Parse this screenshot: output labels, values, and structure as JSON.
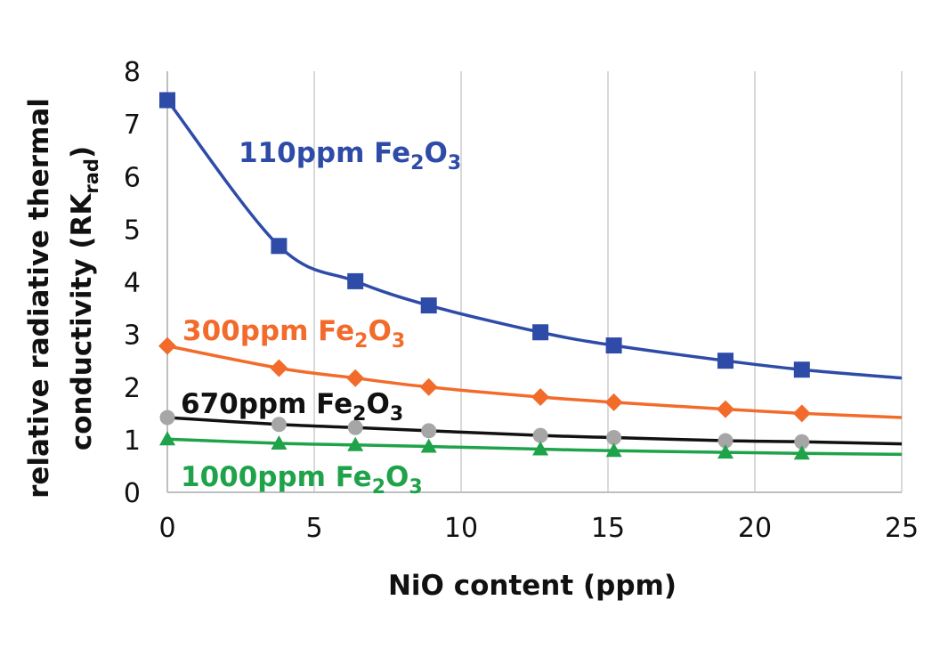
{
  "chart_data": {
    "type": "line",
    "title": "",
    "xlabel": "NiO content (ppm)",
    "ylabel": "relative radiative thermal conductivity (RK",
    "ylabel_sub": "rad",
    "ylabel_end": ")",
    "xlim": [
      0,
      25
    ],
    "ylim": [
      0,
      8
    ],
    "xticks": [
      0,
      5,
      10,
      15,
      20,
      25
    ],
    "yticks": [
      0,
      1,
      2,
      3,
      4,
      5,
      6,
      7,
      8
    ],
    "grid": "vertical",
    "series": [
      {
        "name": "110ppm Fe2O3",
        "label_prefix": "110ppm Fe",
        "label_sub1": "2",
        "label_mid": "O",
        "label_sub2": "3",
        "color": "#2E4BA8",
        "marker": "square",
        "x": [
          0,
          3.8,
          6.4,
          8.9,
          12.7,
          15.2,
          19.0,
          21.6
        ],
        "y": [
          7.45,
          4.68,
          4.01,
          3.55,
          3.04,
          2.79,
          2.5,
          2.33
        ],
        "curve_end": [
          25,
          2.17
        ]
      },
      {
        "name": "300ppm Fe2O3",
        "label_prefix": "300ppm Fe",
        "label_sub1": "2",
        "label_mid": "O",
        "label_sub2": "3",
        "color": "#F26B2B",
        "marker": "diamond",
        "x": [
          0,
          3.8,
          6.4,
          8.9,
          12.7,
          15.2,
          19.0,
          21.6
        ],
        "y": [
          2.78,
          2.36,
          2.17,
          2.0,
          1.81,
          1.71,
          1.58,
          1.5
        ],
        "curve_end": [
          25,
          1.42
        ]
      },
      {
        "name": "670ppm Fe2O3",
        "label_prefix": "670ppm Fe",
        "label_sub1": "2",
        "label_mid": "O",
        "label_sub2": "3",
        "color": "#111111",
        "marker": "circle",
        "marker_color": "#A6A6A6",
        "x": [
          0,
          3.8,
          6.4,
          8.9,
          12.7,
          15.2,
          19.0,
          21.6
        ],
        "y": [
          1.42,
          1.29,
          1.23,
          1.17,
          1.08,
          1.04,
          0.98,
          0.96
        ],
        "curve_end": [
          25,
          0.92
        ]
      },
      {
        "name": "1000ppm Fe2O3",
        "label_prefix": "1000ppm Fe",
        "label_sub1": "2",
        "label_mid": "O",
        "label_sub2": "3",
        "color": "#1FA34A",
        "marker": "triangle",
        "x": [
          0,
          3.8,
          6.4,
          8.9,
          12.7,
          15.2,
          19.0,
          21.6
        ],
        "y": [
          1.01,
          0.93,
          0.9,
          0.87,
          0.82,
          0.79,
          0.76,
          0.74
        ],
        "curve_end": [
          25,
          0.72
        ]
      }
    ]
  }
}
